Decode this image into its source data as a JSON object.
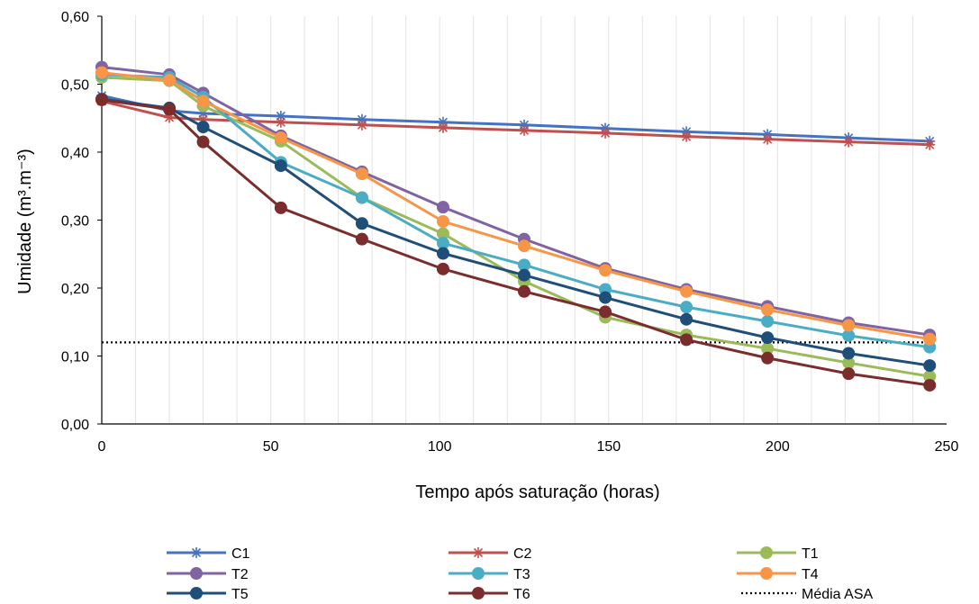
{
  "chart_data": {
    "type": "line",
    "title": "",
    "xlabel": "Tempo após saturação (horas)",
    "ylabel": "Umidade (m³.m⁻³)",
    "xlim": [
      0,
      250
    ],
    "ylim": [
      0,
      0.6
    ],
    "xticks": [
      0,
      50,
      100,
      150,
      200,
      250
    ],
    "yticks": [
      0,
      0.1,
      0.2,
      0.3,
      0.4,
      0.5,
      0.6
    ],
    "xtick_labels": [
      "0",
      "50",
      "100",
      "150",
      "200",
      "250"
    ],
    "ytick_labels": [
      "0,00",
      "0,10",
      "0,20",
      "0,30",
      "0,40",
      "0,50",
      "0,60"
    ],
    "grid": "vertical",
    "legend": "bottom",
    "x": [
      0,
      20,
      30,
      53,
      77,
      101,
      125,
      149,
      173,
      197,
      221,
      245
    ],
    "series": [
      {
        "name": "C1",
        "color": "#4472C4",
        "marker": "asterisk",
        "values": [
          0.483,
          0.461,
          0.457,
          0.453,
          0.448,
          0.444,
          0.44,
          0.435,
          0.43,
          0.426,
          0.421,
          0.416
        ]
      },
      {
        "name": "C2",
        "color": "#C0504D",
        "marker": "asterisk",
        "values": [
          0.475,
          0.451,
          0.448,
          0.444,
          0.44,
          0.436,
          0.432,
          0.428,
          0.423,
          0.419,
          0.415,
          0.411
        ]
      },
      {
        "name": "T1",
        "color": "#9BBB59",
        "marker": "circle",
        "values": [
          0.51,
          0.505,
          0.468,
          0.416,
          0.333,
          0.28,
          0.21,
          0.157,
          0.131,
          0.111,
          0.09,
          0.07
        ]
      },
      {
        "name": "T2",
        "color": "#8064A2",
        "marker": "circle",
        "values": [
          0.525,
          0.514,
          0.487,
          0.424,
          0.371,
          0.319,
          0.272,
          0.229,
          0.198,
          0.173,
          0.149,
          0.131
        ]
      },
      {
        "name": "T3",
        "color": "#4BACC6",
        "marker": "circle",
        "values": [
          0.514,
          0.51,
          0.481,
          0.385,
          0.333,
          0.266,
          0.234,
          0.198,
          0.172,
          0.151,
          0.13,
          0.113
        ]
      },
      {
        "name": "T4",
        "color": "#F79646",
        "marker": "circle",
        "values": [
          0.517,
          0.506,
          0.475,
          0.421,
          0.368,
          0.298,
          0.262,
          0.226,
          0.195,
          0.168,
          0.145,
          0.125
        ]
      },
      {
        "name": "T5",
        "color": "#1F4E79",
        "marker": "circle",
        "values": [
          0.478,
          0.465,
          0.437,
          0.38,
          0.295,
          0.251,
          0.219,
          0.186,
          0.154,
          0.127,
          0.104,
          0.086
        ]
      },
      {
        "name": "T6",
        "color": "#7B2C2C",
        "marker": "circle",
        "values": [
          0.477,
          0.463,
          0.415,
          0.318,
          0.272,
          0.228,
          0.195,
          0.165,
          0.124,
          0.097,
          0.074,
          0.057
        ]
      }
    ],
    "reference_line": {
      "name": "Média ASA",
      "value": 0.12,
      "color": "#000000",
      "style": "dotted"
    }
  }
}
